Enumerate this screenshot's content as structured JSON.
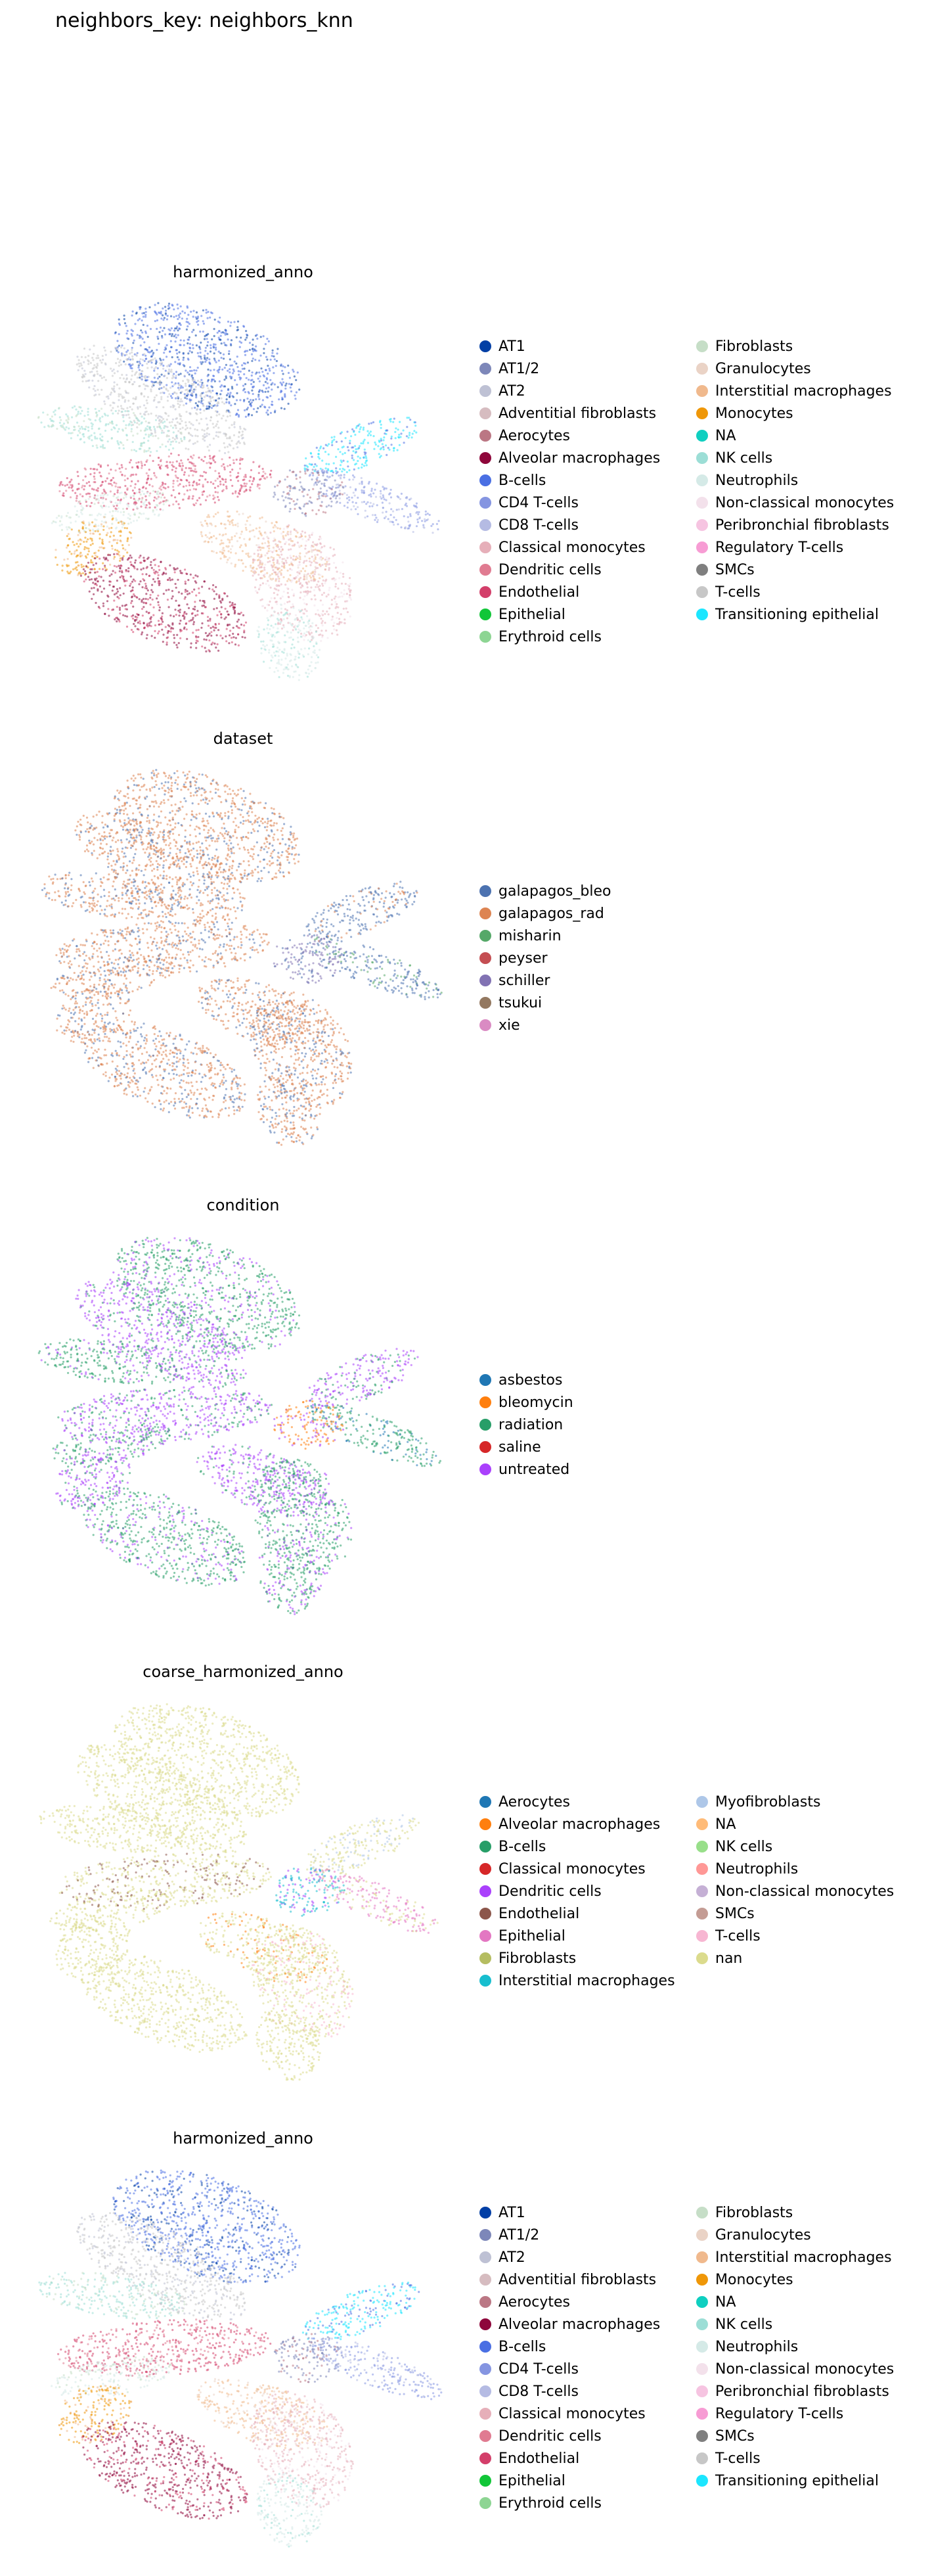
{
  "page_title": "neighbors_key: neighbors_knn",
  "chart_data": [
    {
      "type": "scatter",
      "title": "harmonized_anno",
      "legend_position": "right",
      "legend": [
        {
          "label": "AT1",
          "color": "#023fa5"
        },
        {
          "label": "AT1/2",
          "color": "#7d87b9"
        },
        {
          "label": "AT2",
          "color": "#bec1d4"
        },
        {
          "label": "Adventitial fibroblasts",
          "color": "#d6bcc0"
        },
        {
          "label": "Aerocytes",
          "color": "#bb7784"
        },
        {
          "label": "Alveolar macrophages",
          "color": "#8e063b"
        },
        {
          "label": "B-cells",
          "color": "#4a6fe3"
        },
        {
          "label": "CD4 T-cells",
          "color": "#8595e1"
        },
        {
          "label": "CD8 T-cells",
          "color": "#b5bbe3"
        },
        {
          "label": "Classical monocytes",
          "color": "#e6afb9"
        },
        {
          "label": "Dendritic cells",
          "color": "#e07b91"
        },
        {
          "label": "Endothelial",
          "color": "#d33f6a"
        },
        {
          "label": "Epithelial",
          "color": "#11c638"
        },
        {
          "label": "Erythroid cells",
          "color": "#8dd593"
        },
        {
          "label": "Fibroblasts",
          "color": "#c6dec7"
        },
        {
          "label": "Granulocytes",
          "color": "#ead3c6"
        },
        {
          "label": "Interstitial macrophages",
          "color": "#f0b98d"
        },
        {
          "label": "Monocytes",
          "color": "#ef9708"
        },
        {
          "label": "NA",
          "color": "#0fcfc0"
        },
        {
          "label": "NK cells",
          "color": "#9cded6"
        },
        {
          "label": "Neutrophils",
          "color": "#d5eae7"
        },
        {
          "label": "Non-classical monocytes",
          "color": "#f3e1eb"
        },
        {
          "label": "Peribronchial fibroblasts",
          "color": "#f6c4e1"
        },
        {
          "label": "Regulatory T-cells",
          "color": "#f79cd4"
        },
        {
          "label": "SMCs",
          "color": "#7f7f7f"
        },
        {
          "label": "T-cells",
          "color": "#c7c7c7"
        },
        {
          "label": "Transitioning epithelial",
          "color": "#1ce6ff"
        }
      ],
      "clusters": [
        {
          "shape": "top",
          "colors": [
            "#4a6fe3",
            "#023fa5"
          ]
        },
        {
          "shape": "upper_left",
          "colors": [
            "#c7c7c7",
            "#bec1d4"
          ]
        },
        {
          "shape": "upper_band",
          "colors": [
            "#9cded6",
            "#c6dec7"
          ]
        },
        {
          "shape": "middle_band",
          "colors": [
            "#d33f6a",
            "#e07b91"
          ]
        },
        {
          "shape": "left_middle",
          "colors": [
            "#d5eae7",
            "#c6dec7"
          ]
        },
        {
          "shape": "left_blob",
          "colors": [
            "#ef9708",
            "#f0b98d"
          ]
        },
        {
          "shape": "lower_left",
          "colors": [
            "#8e063b",
            "#d33f6a"
          ]
        },
        {
          "shape": "lower_mid",
          "colors": [
            "#f0b98d",
            "#ead3c6"
          ]
        },
        {
          "shape": "lower_right",
          "colors": [
            "#e6afb9",
            "#f3e1eb"
          ]
        },
        {
          "shape": "bottom",
          "colors": [
            "#d5eae7",
            "#9cded6"
          ]
        },
        {
          "shape": "right_upper",
          "colors": [
            "#1ce6ff",
            "#4a6fe3"
          ]
        },
        {
          "shape": "right_lower",
          "colors": [
            "#8595e1",
            "#b5bbe3"
          ]
        },
        {
          "shape": "center",
          "colors": [
            "#7d87b9",
            "#bb7784"
          ]
        }
      ]
    },
    {
      "type": "scatter",
      "title": "dataset",
      "legend_position": "right",
      "legend": [
        {
          "label": "galapagos_bleo",
          "color": "#4c72b0"
        },
        {
          "label": "galapagos_rad",
          "color": "#dd8452"
        },
        {
          "label": "misharin",
          "color": "#55a868"
        },
        {
          "label": "peyser",
          "color": "#c44e52"
        },
        {
          "label": "schiller",
          "color": "#8172b3"
        },
        {
          "label": "tsukui",
          "color": "#937860"
        },
        {
          "label": "xie",
          "color": "#da8bc3"
        }
      ],
      "clusters": [
        {
          "shape": "top",
          "colors": [
            "#dd8452",
            "#4c72b0"
          ]
        },
        {
          "shape": "upper_left",
          "colors": [
            "#dd8452",
            "#4c72b0"
          ]
        },
        {
          "shape": "upper_band",
          "colors": [
            "#dd8452",
            "#4c72b0"
          ]
        },
        {
          "shape": "middle_band",
          "colors": [
            "#dd8452",
            "#4c72b0"
          ]
        },
        {
          "shape": "left_middle",
          "colors": [
            "#dd8452",
            "#4c72b0"
          ]
        },
        {
          "shape": "left_blob",
          "colors": [
            "#dd8452",
            "#4c72b0"
          ]
        },
        {
          "shape": "lower_left",
          "colors": [
            "#dd8452",
            "#4c72b0"
          ]
        },
        {
          "shape": "lower_mid",
          "colors": [
            "#dd8452",
            "#4c72b0"
          ]
        },
        {
          "shape": "lower_right",
          "colors": [
            "#dd8452",
            "#4c72b0"
          ]
        },
        {
          "shape": "bottom",
          "colors": [
            "#dd8452",
            "#4c72b0"
          ]
        },
        {
          "shape": "right_upper",
          "colors": [
            "#4c72b0",
            "#dd8452"
          ]
        },
        {
          "shape": "right_lower",
          "colors": [
            "#4c72b0",
            "#55a868"
          ]
        },
        {
          "shape": "center",
          "colors": [
            "#8172b3",
            "#4c72b0"
          ]
        }
      ]
    },
    {
      "type": "scatter",
      "title": "condition",
      "legend_position": "right",
      "legend": [
        {
          "label": "asbestos",
          "color": "#1f77b4"
        },
        {
          "label": "bleomycin",
          "color": "#ff7f0e"
        },
        {
          "label": "radiation",
          "color": "#279e68"
        },
        {
          "label": "saline",
          "color": "#d62728"
        },
        {
          "label": "untreated",
          "color": "#aa40fc"
        }
      ],
      "clusters": [
        {
          "shape": "top",
          "colors": [
            "#279e68",
            "#aa40fc"
          ]
        },
        {
          "shape": "upper_left",
          "colors": [
            "#aa40fc",
            "#279e68"
          ]
        },
        {
          "shape": "upper_band",
          "colors": [
            "#279e68",
            "#aa40fc"
          ]
        },
        {
          "shape": "middle_band",
          "colors": [
            "#aa40fc",
            "#279e68"
          ]
        },
        {
          "shape": "left_middle",
          "colors": [
            "#279e68",
            "#aa40fc"
          ]
        },
        {
          "shape": "left_blob",
          "colors": [
            "#aa40fc",
            "#279e68"
          ]
        },
        {
          "shape": "lower_left",
          "colors": [
            "#279e68",
            "#aa40fc"
          ]
        },
        {
          "shape": "lower_mid",
          "colors": [
            "#aa40fc",
            "#279e68"
          ]
        },
        {
          "shape": "lower_right",
          "colors": [
            "#279e68",
            "#aa40fc"
          ]
        },
        {
          "shape": "bottom",
          "colors": [
            "#279e68",
            "#aa40fc"
          ]
        },
        {
          "shape": "right_upper",
          "colors": [
            "#aa40fc",
            "#279e68"
          ]
        },
        {
          "shape": "right_lower",
          "colors": [
            "#279e68",
            "#1f77b4"
          ]
        },
        {
          "shape": "center",
          "colors": [
            "#ff7f0e",
            "#aa40fc"
          ]
        }
      ]
    },
    {
      "type": "scatter",
      "title": "coarse_harmonized_anno",
      "legend_position": "right",
      "legend": [
        {
          "label": "Aerocytes",
          "color": "#1f77b4"
        },
        {
          "label": "Alveolar macrophages",
          "color": "#ff7f0e"
        },
        {
          "label": "B-cells",
          "color": "#279e68"
        },
        {
          "label": "Classical monocytes",
          "color": "#d62728"
        },
        {
          "label": "Dendritic cells",
          "color": "#aa40fc"
        },
        {
          "label": "Endothelial",
          "color": "#8c564b"
        },
        {
          "label": "Epithelial",
          "color": "#e377c2"
        },
        {
          "label": "Fibroblasts",
          "color": "#b5bd61"
        },
        {
          "label": "Interstitial macrophages",
          "color": "#17becf"
        },
        {
          "label": "Myofibroblasts",
          "color": "#aec7e8"
        },
        {
          "label": "NA",
          "color": "#ffbb78"
        },
        {
          "label": "NK cells",
          "color": "#98df8a"
        },
        {
          "label": "Neutrophils",
          "color": "#ff9896"
        },
        {
          "label": "Non-classical monocytes",
          "color": "#c5b0d5"
        },
        {
          "label": "SMCs",
          "color": "#c49c94"
        },
        {
          "label": "T-cells",
          "color": "#f7b6d2"
        },
        {
          "label": "nan",
          "color": "#dbdb8d"
        }
      ],
      "clusters": [
        {
          "shape": "top",
          "colors": [
            "#dbdb8d",
            "#dbdb8d"
          ]
        },
        {
          "shape": "upper_left",
          "colors": [
            "#dbdb8d",
            "#dbdb8d"
          ]
        },
        {
          "shape": "upper_band",
          "colors": [
            "#dbdb8d",
            "#dbdb8d"
          ]
        },
        {
          "shape": "middle_band",
          "colors": [
            "#dbdb8d",
            "#8c564b"
          ]
        },
        {
          "shape": "left_middle",
          "colors": [
            "#dbdb8d",
            "#dbdb8d"
          ]
        },
        {
          "shape": "left_blob",
          "colors": [
            "#dbdb8d",
            "#dbdb8d"
          ]
        },
        {
          "shape": "lower_left",
          "colors": [
            "#dbdb8d",
            "#dbdb8d"
          ]
        },
        {
          "shape": "lower_mid",
          "colors": [
            "#dbdb8d",
            "#ff7f0e"
          ]
        },
        {
          "shape": "lower_right",
          "colors": [
            "#dbdb8d",
            "#f7b6d2"
          ]
        },
        {
          "shape": "bottom",
          "colors": [
            "#dbdb8d",
            "#dbdb8d"
          ]
        },
        {
          "shape": "right_upper",
          "colors": [
            "#dbdb8d",
            "#aec7e8"
          ]
        },
        {
          "shape": "right_lower",
          "colors": [
            "#e377c2",
            "#dbdb8d"
          ]
        },
        {
          "shape": "center",
          "colors": [
            "#17becf",
            "#aa40fc"
          ]
        }
      ]
    },
    {
      "type": "scatter",
      "title": "harmonized_anno",
      "legend_position": "right",
      "legend": [
        {
          "label": "AT1",
          "color": "#023fa5"
        },
        {
          "label": "AT1/2",
          "color": "#7d87b9"
        },
        {
          "label": "AT2",
          "color": "#bec1d4"
        },
        {
          "label": "Adventitial fibroblasts",
          "color": "#d6bcc0"
        },
        {
          "label": "Aerocytes",
          "color": "#bb7784"
        },
        {
          "label": "Alveolar macrophages",
          "color": "#8e063b"
        },
        {
          "label": "B-cells",
          "color": "#4a6fe3"
        },
        {
          "label": "CD4 T-cells",
          "color": "#8595e1"
        },
        {
          "label": "CD8 T-cells",
          "color": "#b5bbe3"
        },
        {
          "label": "Classical monocytes",
          "color": "#e6afb9"
        },
        {
          "label": "Dendritic cells",
          "color": "#e07b91"
        },
        {
          "label": "Endothelial",
          "color": "#d33f6a"
        },
        {
          "label": "Epithelial",
          "color": "#11c638"
        },
        {
          "label": "Erythroid cells",
          "color": "#8dd593"
        },
        {
          "label": "Fibroblasts",
          "color": "#c6dec7"
        },
        {
          "label": "Granulocytes",
          "color": "#ead3c6"
        },
        {
          "label": "Interstitial macrophages",
          "color": "#f0b98d"
        },
        {
          "label": "Monocytes",
          "color": "#ef9708"
        },
        {
          "label": "NA",
          "color": "#0fcfc0"
        },
        {
          "label": "NK cells",
          "color": "#9cded6"
        },
        {
          "label": "Neutrophils",
          "color": "#d5eae7"
        },
        {
          "label": "Non-classical monocytes",
          "color": "#f3e1eb"
        },
        {
          "label": "Peribronchial fibroblasts",
          "color": "#f6c4e1"
        },
        {
          "label": "Regulatory T-cells",
          "color": "#f79cd4"
        },
        {
          "label": "SMCs",
          "color": "#7f7f7f"
        },
        {
          "label": "T-cells",
          "color": "#c7c7c7"
        },
        {
          "label": "Transitioning epithelial",
          "color": "#1ce6ff"
        }
      ],
      "clusters": [
        {
          "shape": "top",
          "colors": [
            "#4a6fe3",
            "#023fa5"
          ]
        },
        {
          "shape": "upper_left",
          "colors": [
            "#c7c7c7",
            "#bec1d4"
          ]
        },
        {
          "shape": "upper_band",
          "colors": [
            "#9cded6",
            "#c6dec7"
          ]
        },
        {
          "shape": "middle_band",
          "colors": [
            "#d33f6a",
            "#e07b91"
          ]
        },
        {
          "shape": "left_middle",
          "colors": [
            "#d5eae7",
            "#c6dec7"
          ]
        },
        {
          "shape": "left_blob",
          "colors": [
            "#ef9708",
            "#f0b98d"
          ]
        },
        {
          "shape": "lower_left",
          "colors": [
            "#8e063b",
            "#d33f6a"
          ]
        },
        {
          "shape": "lower_mid",
          "colors": [
            "#f0b98d",
            "#ead3c6"
          ]
        },
        {
          "shape": "lower_right",
          "colors": [
            "#e6afb9",
            "#f3e1eb"
          ]
        },
        {
          "shape": "bottom",
          "colors": [
            "#d5eae7",
            "#9cded6"
          ]
        },
        {
          "shape": "right_upper",
          "colors": [
            "#1ce6ff",
            "#4a6fe3"
          ]
        },
        {
          "shape": "right_lower",
          "colors": [
            "#8595e1",
            "#b5bbe3"
          ]
        },
        {
          "shape": "center",
          "colors": [
            "#7d87b9",
            "#bb7784"
          ]
        }
      ]
    }
  ]
}
